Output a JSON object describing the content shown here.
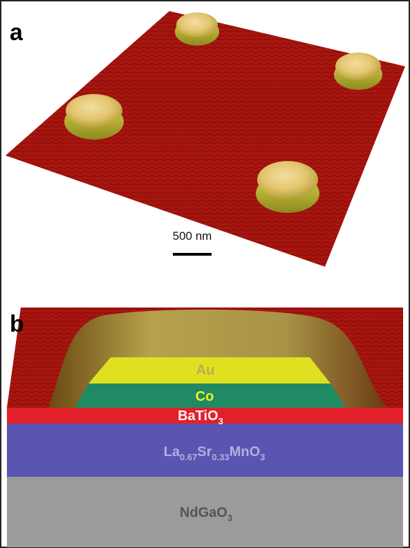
{
  "panels": [
    {
      "label": "a",
      "scale_bar": "500 nm"
    },
    {
      "label": "b",
      "layers": [
        {
          "parts": [
            "Au"
          ]
        },
        {
          "parts": [
            "Co"
          ]
        },
        {
          "parts": [
            "BaTiO",
            "3"
          ]
        },
        {
          "parts": [
            "La",
            "0.67",
            "Sr",
            "0.33",
            "MnO",
            "3"
          ]
        },
        {
          "parts": [
            "NdGaO",
            "3"
          ]
        }
      ]
    }
  ]
}
